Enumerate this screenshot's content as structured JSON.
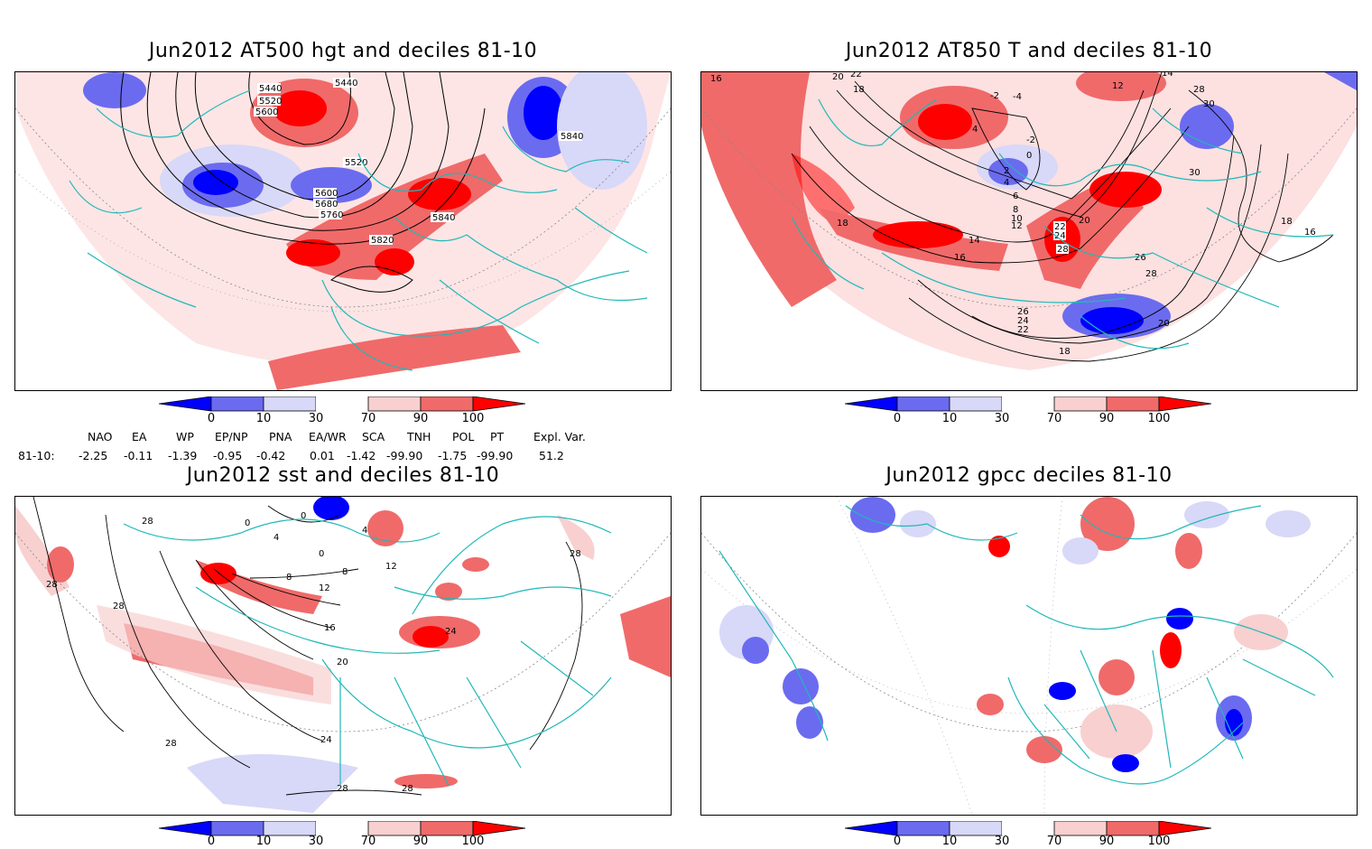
{
  "panels": [
    {
      "title": "Jun2012 AT500 hgt and deciles 81-10",
      "contour_labels": [
        "5440",
        "5440",
        "5520",
        "5600",
        "5840",
        "5520",
        "5600",
        "5680",
        "5760",
        "5840",
        "5820"
      ]
    },
    {
      "title": "Jun2012 AT850 T and deciles 81-10",
      "contour_labels": [
        "16",
        "20",
        "22",
        "18",
        "-2",
        "-4",
        "12",
        "14",
        "28",
        "30",
        "4",
        "-2",
        "0",
        "2",
        "4",
        "6",
        "8",
        "10",
        "12",
        "18",
        "14",
        "16",
        "22",
        "20",
        "24",
        "28",
        "26",
        "28",
        "30",
        "18",
        "16",
        "26",
        "24",
        "22",
        "20",
        "18"
      ]
    },
    {
      "title": "Jun2012 sst and deciles 81-10",
      "contour_labels": [
        "28",
        "0",
        "0",
        "4",
        "4",
        "8",
        "0",
        "8",
        "12",
        "12",
        "16",
        "20",
        "24",
        "28",
        "28",
        "28",
        "28",
        "28",
        "28",
        "24"
      ]
    },
    {
      "title": "Jun2012 gpcc deciles 81-10",
      "contour_labels": []
    }
  ],
  "colorbar": {
    "tick_labels": [
      "0",
      "10",
      "30",
      "70",
      "90",
      "100"
    ],
    "colors": [
      "#0000ff",
      "#6b6bf0",
      "#d8d8f8",
      "#ffffff",
      "#f8d0d0",
      "#f06a6a",
      "#ff0000"
    ]
  },
  "indices": {
    "header_names": [
      "NAO",
      "EA",
      "WP",
      "EP/NP",
      "PNA",
      "EA/WR",
      "SCA",
      "TNH",
      "POL",
      "PT",
      "Expl. Var."
    ],
    "row_label": "81-10:",
    "values": [
      "-2.25",
      "-0.11",
      "-1.39",
      "-0.95",
      "-0.42",
      "0.01",
      "-1.42",
      "-99.90",
      "-1.75",
      "-99.90",
      "51.2"
    ]
  }
}
